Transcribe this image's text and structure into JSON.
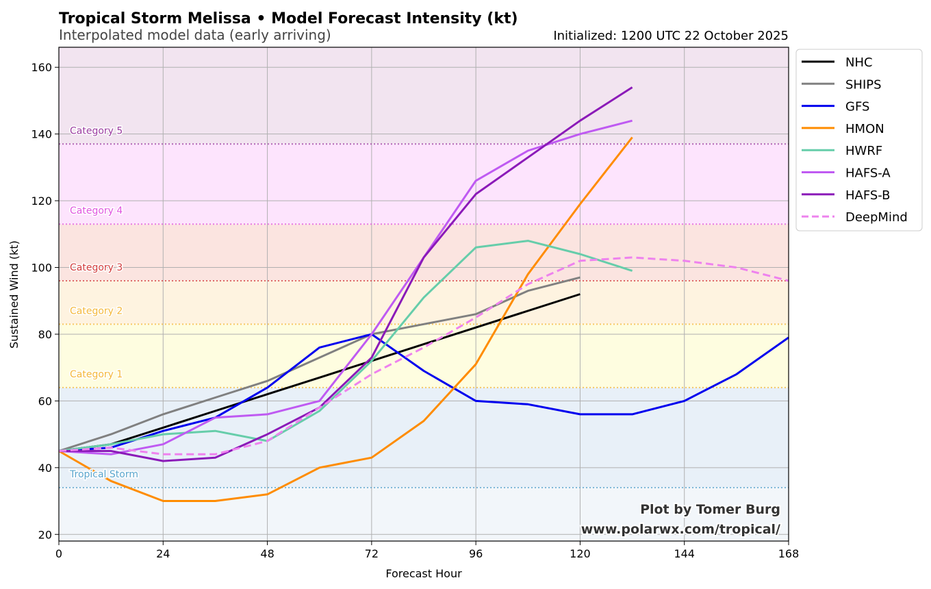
{
  "chart_data": {
    "type": "line",
    "title": "Tropical Storm Melissa • Model Forecast Intensity (kt)",
    "subtitle": "Interpolated model data (early arriving)",
    "init_text": "Initialized: 1200 UTC 22 October 2025",
    "xlabel": "Forecast Hour",
    "ylabel": "Sustained Wind (kt)",
    "xlim": [
      0,
      168
    ],
    "ylim": [
      18,
      166
    ],
    "xticks": [
      0,
      24,
      48,
      72,
      96,
      120,
      144,
      168
    ],
    "yticks": [
      20,
      40,
      60,
      80,
      100,
      120,
      140,
      160
    ],
    "grid": true,
    "legend_position": "outside-top-right",
    "credit_line1": "Plot by Tomer Burg",
    "credit_line2": "www.polarwx.com/tropical/",
    "categories": [
      {
        "name": "Tropical Storm",
        "low": 34,
        "high": 64,
        "color": "#5aa5cd",
        "fill": "#e8f0f8"
      },
      {
        "name": "Category 1",
        "low": 64,
        "high": 83,
        "color": "#f5b83a",
        "fill": "#fefde0"
      },
      {
        "name": "Category 2",
        "low": 83,
        "high": 96,
        "color": "#f5b83a",
        "fill": "#fef3e0"
      },
      {
        "name": "Category 3",
        "low": 96,
        "high": 113,
        "color": "#d23c3c",
        "fill": "#fbe4e0"
      },
      {
        "name": "Category 4",
        "low": 113,
        "high": 137,
        "color": "#e055e0",
        "fill": "#fde4fd"
      },
      {
        "name": "Category 5",
        "low": 137,
        "high": 166,
        "color": "#9b3ba0",
        "fill": "#f2e4f0"
      }
    ],
    "below_fill": "#f2f6fa",
    "series": [
      {
        "name": "NHC",
        "color": "#000000",
        "dash": false,
        "x": [
          0,
          12,
          24,
          36,
          48,
          60,
          72,
          96,
          120
        ],
        "values": [
          45,
          47,
          52,
          57,
          62,
          67,
          72,
          82,
          92
        ]
      },
      {
        "name": "SHIPS",
        "color": "#808080",
        "dash": false,
        "x": [
          0,
          12,
          24,
          36,
          48,
          60,
          72,
          84,
          96,
          108,
          120
        ],
        "values": [
          45,
          50,
          56,
          61,
          66,
          73,
          80,
          83,
          86,
          93,
          97
        ]
      },
      {
        "name": "GFS",
        "color": "#0000ee",
        "dash": false,
        "x": [
          0,
          12,
          24,
          36,
          48,
          60,
          72,
          84,
          96,
          108,
          120,
          132,
          144,
          156,
          168
        ],
        "values": [
          45,
          46,
          51,
          55,
          64,
          76,
          80,
          69,
          60,
          59,
          56,
          56,
          60,
          68,
          79
        ]
      },
      {
        "name": "HMON",
        "color": "#ff8c00",
        "dash": false,
        "x": [
          0,
          12,
          24,
          36,
          48,
          60,
          72,
          84,
          96,
          108,
          120,
          132
        ],
        "values": [
          45,
          36,
          30,
          30,
          32,
          40,
          43,
          54,
          71,
          98,
          119,
          139
        ]
      },
      {
        "name": "HWRF",
        "color": "#66cdaa",
        "dash": false,
        "x": [
          0,
          12,
          24,
          36,
          48,
          60,
          72,
          84,
          96,
          108,
          120,
          132
        ],
        "values": [
          45,
          47,
          50,
          51,
          48,
          57,
          72,
          91,
          106,
          108,
          104,
          99
        ]
      },
      {
        "name": "HAFS-A",
        "color": "#bf5af2",
        "dash": false,
        "x": [
          0,
          12,
          24,
          36,
          48,
          60,
          72,
          84,
          96,
          108,
          120,
          132
        ],
        "values": [
          45,
          44,
          47,
          55,
          56,
          60,
          80,
          103,
          126,
          135,
          140,
          144
        ]
      },
      {
        "name": "HAFS-B",
        "color": "#8b1ab8",
        "dash": false,
        "x": [
          0,
          12,
          24,
          36,
          48,
          60,
          72,
          84,
          96,
          108,
          120,
          132
        ],
        "values": [
          45,
          45,
          42,
          43,
          50,
          58,
          73,
          103,
          122,
          133,
          144,
          154
        ]
      },
      {
        "name": "DeepMind",
        "color": "#ee82ee",
        "dash": true,
        "x": [
          0,
          12,
          24,
          36,
          48,
          60,
          72,
          84,
          96,
          108,
          120,
          132,
          144,
          156,
          168
        ],
        "values": [
          45,
          46,
          44,
          44,
          48,
          58,
          68,
          76,
          85,
          95,
          102,
          103,
          102,
          100,
          96
        ]
      }
    ]
  }
}
